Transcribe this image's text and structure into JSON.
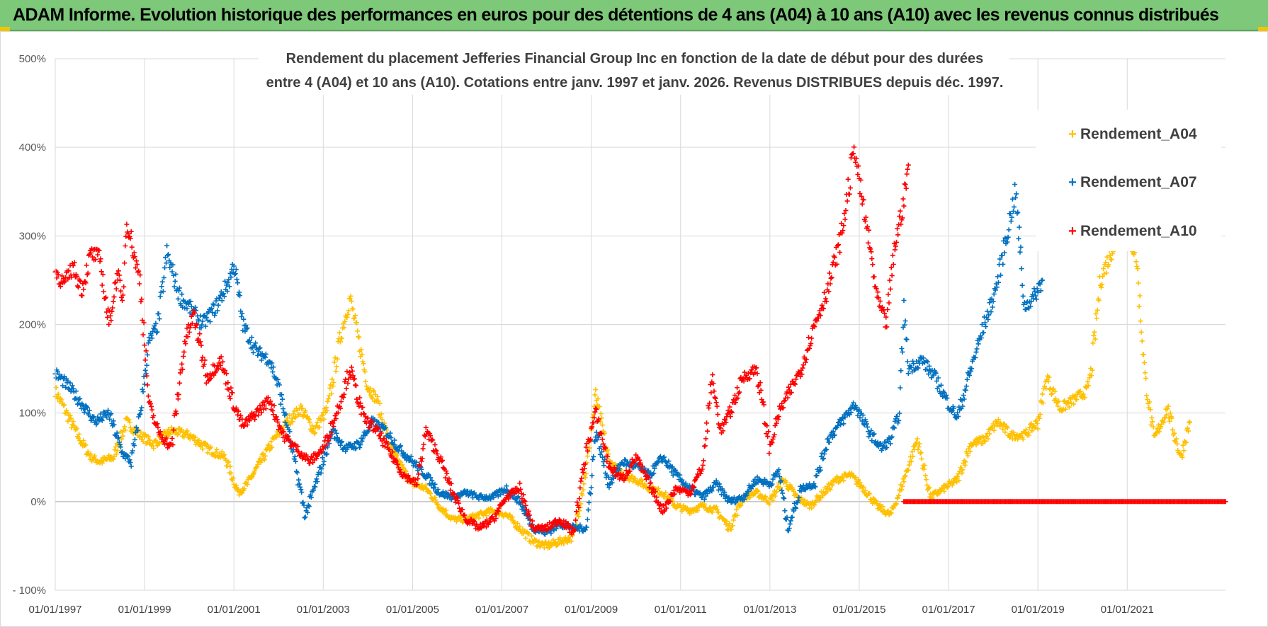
{
  "banner": {
    "title": "ADAM Informe. Evolution historique des performances en euros pour des détentions de 4 ans (A04) à 10 ans (A10) avec les revenus connus distribués"
  },
  "chart_data": {
    "type": "scatter",
    "title_lines": [
      "Rendement du placement Jefferies Financial Group Inc en fonction de la date de début pour des durées",
      "entre 4 (A04) et 10 ans (A10). Cotations entre janv. 1997 et janv. 2026. Revenus DISTRIBUES depuis déc. 1997."
    ],
    "xlabel": "",
    "ylabel": "",
    "x_ticks": [
      "01/01/1997",
      "01/01/1999",
      "01/01/2001",
      "01/01/2003",
      "01/01/2005",
      "01/01/2007",
      "01/01/2009",
      "01/01/2011",
      "01/01/2013",
      "01/01/2015",
      "01/01/2017",
      "01/01/2019",
      "01/01/2021"
    ],
    "xlim": [
      1997.0,
      2023.2
    ],
    "y_ticks": [
      "500%",
      "400%",
      "300%",
      "200%",
      "100%",
      "0%",
      "- 100%"
    ],
    "ylim": [
      -100,
      500
    ],
    "grid": true,
    "legend_position": "top-right",
    "series": [
      {
        "name": "Rendement_A04",
        "color": "#ffc000",
        "x": [
          1997.0,
          1997.2,
          1997.5,
          1997.8,
          1998.0,
          1998.3,
          1998.6,
          1998.9,
          1999.2,
          1999.6,
          2000.0,
          2000.4,
          2000.8,
          2001.1,
          2001.3,
          2001.6,
          2001.9,
          2002.2,
          2002.5,
          2002.8,
          2003.1,
          2003.4,
          2003.6,
          2003.8,
          2004.0,
          2004.2,
          2004.5,
          2004.8,
          2005.0,
          2005.3,
          2005.6,
          2005.9,
          2006.2,
          2006.5,
          2006.8,
          2007.1,
          2007.4,
          2007.7,
          2008.0,
          2008.3,
          2008.6,
          2008.9,
          2009.1,
          2009.4,
          2009.7,
          2010.0,
          2010.3,
          2010.6,
          2010.9,
          2011.2,
          2011.5,
          2011.8,
          2012.1,
          2012.4,
          2012.7,
          2013.0,
          2013.3,
          2013.6,
          2013.9,
          2014.2,
          2014.5,
          2014.8,
          2015.1,
          2015.4,
          2015.7,
          2015.9,
          2016.1,
          2016.3,
          2016.6,
          2016.9,
          2017.2,
          2017.5,
          2017.8,
          2018.1,
          2018.4,
          2018.7,
          2019.0,
          2019.2,
          2019.5,
          2019.8,
          2020.1,
          2020.2,
          2020.4,
          2020.7,
          2021.0,
          2021.2,
          2021.4,
          2021.6,
          2021.9,
          2022.2,
          2022.4
        ],
        "values": [
          125,
          105,
          75,
          50,
          45,
          50,
          90,
          75,
          65,
          80,
          75,
          60,
          50,
          10,
          20,
          45,
          70,
          90,
          105,
          80,
          105,
          190,
          230,
          180,
          130,
          115,
          60,
          35,
          20,
          15,
          -5,
          -20,
          -20,
          -15,
          -10,
          -15,
          -30,
          -45,
          -50,
          -45,
          -40,
          40,
          120,
          45,
          30,
          25,
          15,
          10,
          -5,
          -10,
          -5,
          -10,
          -30,
          5,
          10,
          0,
          25,
          5,
          -5,
          10,
          25,
          30,
          15,
          -5,
          -15,
          10,
          40,
          70,
          5,
          15,
          25,
          65,
          70,
          90,
          75,
          75,
          90,
          140,
          105,
          115,
          125,
          150,
          250,
          290,
          300,
          280,
          140,
          70,
          105,
          50,
          90
        ]
      },
      {
        "name": "Rendement_A07",
        "color": "#0070c0",
        "x": [
          1997.0,
          1997.3,
          1997.6,
          1997.9,
          1998.2,
          1998.5,
          1998.7,
          1998.9,
          1999.1,
          1999.3,
          1999.5,
          1999.8,
          2000.0,
          2000.3,
          2000.6,
          2000.9,
          2001.0,
          2001.2,
          2001.5,
          2001.8,
          2002.0,
          2002.3,
          2002.6,
          2002.9,
          2003.2,
          2003.5,
          2003.8,
          2004.1,
          2004.4,
          2004.7,
          2005.0,
          2005.3,
          2005.6,
          2005.9,
          2006.2,
          2006.5,
          2006.8,
          2007.1,
          2007.4,
          2007.7,
          2008.0,
          2008.3,
          2008.6,
          2008.9,
          2009.1,
          2009.4,
          2009.7,
          2010.0,
          2010.3,
          2010.6,
          2010.9,
          2011.2,
          2011.5,
          2011.8,
          2012.1,
          2012.4,
          2012.7,
          2013.0,
          2013.2,
          2013.4,
          2013.7,
          2014.0,
          2014.3,
          2014.6,
          2014.9,
          2015.2,
          2015.5,
          2015.7,
          2015.9,
          2016.0,
          2016.1,
          2016.4,
          2016.7,
          2017.0,
          2017.2,
          2017.5,
          2017.8,
          2018.0,
          2018.1,
          2018.3,
          2018.5,
          2018.7,
          2018.9,
          2019.1
        ],
        "values": [
          145,
          130,
          110,
          90,
          100,
          55,
          45,
          100,
          180,
          200,
          280,
          230,
          220,
          200,
          220,
          250,
          270,
          200,
          170,
          160,
          130,
          60,
          -15,
          30,
          80,
          60,
          65,
          90,
          80,
          60,
          45,
          30,
          10,
          5,
          10,
          5,
          5,
          15,
          0,
          -30,
          -35,
          -25,
          -30,
          -30,
          80,
          20,
          45,
          40,
          30,
          50,
          30,
          15,
          5,
          20,
          0,
          5,
          25,
          20,
          35,
          -30,
          15,
          20,
          70,
          90,
          110,
          80,
          60,
          70,
          100,
          220,
          150,
          160,
          140,
          110,
          95,
          150,
          200,
          230,
          250,
          300,
          350,
          220,
          230,
          250
        ]
      },
      {
        "name": "Rendement_A10",
        "color": "#ff0000",
        "x": [
          1997.0,
          1997.2,
          1997.4,
          1997.6,
          1997.8,
          1998.0,
          1998.2,
          1998.4,
          1998.5,
          1998.6,
          1998.8,
          1998.9,
          1999.1,
          1999.3,
          1999.6,
          1999.9,
          2000.1,
          2000.4,
          2000.7,
          2001.0,
          2001.2,
          2001.5,
          2001.8,
          2002.1,
          2002.4,
          2002.7,
          2003.0,
          2003.3,
          2003.6,
          2003.9,
          2004.2,
          2004.5,
          2004.8,
          2005.1,
          2005.3,
          2005.6,
          2005.9,
          2006.2,
          2006.5,
          2006.8,
          2007.1,
          2007.4,
          2007.7,
          2008.0,
          2008.3,
          2008.6,
          2008.9,
          2009.1,
          2009.4,
          2009.7,
          2010.0,
          2010.3,
          2010.6,
          2010.9,
          2011.2,
          2011.5,
          2011.7,
          2011.9,
          2012.1,
          2012.4,
          2012.7,
          2013.0,
          2013.2,
          2013.4,
          2013.7,
          2014.0,
          2014.3,
          2014.6,
          2014.9,
          2015.0,
          2015.2,
          2015.4,
          2015.6,
          2015.8,
          2016.0,
          2016.1
        ],
        "values": [
          260,
          245,
          265,
          240,
          280,
          275,
          200,
          260,
          220,
          320,
          270,
          250,
          110,
          80,
          60,
          180,
          210,
          140,
          160,
          110,
          85,
          100,
          115,
          75,
          60,
          45,
          60,
          100,
          150,
          95,
          80,
          55,
          30,
          20,
          80,
          50,
          10,
          -20,
          -30,
          -20,
          5,
          15,
          -30,
          -30,
          -20,
          -35,
          60,
          100,
          40,
          25,
          50,
          20,
          -10,
          15,
          10,
          40,
          140,
          80,
          100,
          140,
          150,
          60,
          100,
          120,
          150,
          200,
          240,
          300,
          400,
          360,
          300,
          230,
          200,
          290,
          340,
          380
        ]
      }
    ],
    "flat_zero_segment": {
      "series": "Rendement_A10",
      "from": 2016.0,
      "to": 2023.2,
      "value": 0
    }
  }
}
